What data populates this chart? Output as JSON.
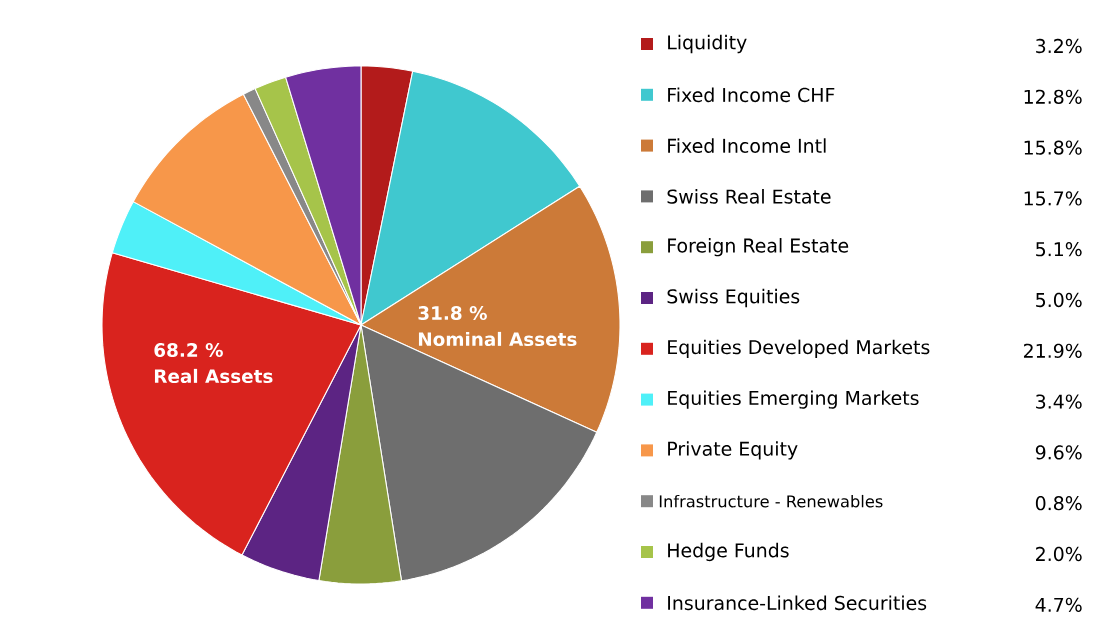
{
  "chart_data": {
    "type": "pie",
    "categories": [
      "Liquidity",
      "Fixed Income CHF",
      "Fixed Income Intl",
      "Swiss Real Estate",
      "Foreign Real Estate",
      "Swiss Equities",
      "Equities Developed Markets",
      "Equities Emerging Markets",
      "Private Equity",
      "Infrastructure - Renewables",
      "Hedge Funds",
      "Insurance-Linked Securities"
    ],
    "values": [
      3.2,
      12.8,
      15.8,
      15.7,
      5.1,
      5.0,
      21.9,
      3.4,
      9.6,
      0.8,
      2.0,
      4.7
    ],
    "value_labels": [
      "3.2%",
      "12.8%",
      "15.8%",
      "15.7%",
      "5.1%",
      "5.0%",
      "21.9%",
      "3.4%",
      "9.6%",
      "0.8%",
      "2.0%",
      "4.7%"
    ],
    "colors": [
      "#b31b1b",
      "#40c8cf",
      "#cc7a38",
      "#6e6e6e",
      "#8a9e3c",
      "#5c2483",
      "#d9231e",
      "#4ff0f8",
      "#f7974a",
      "#888888",
      "#a6c44a",
      "#7030a0"
    ],
    "annotations": [
      "31.8 %",
      "Nominal Assets",
      "68.2 %",
      "Real Assets"
    ],
    "legend": "right"
  }
}
